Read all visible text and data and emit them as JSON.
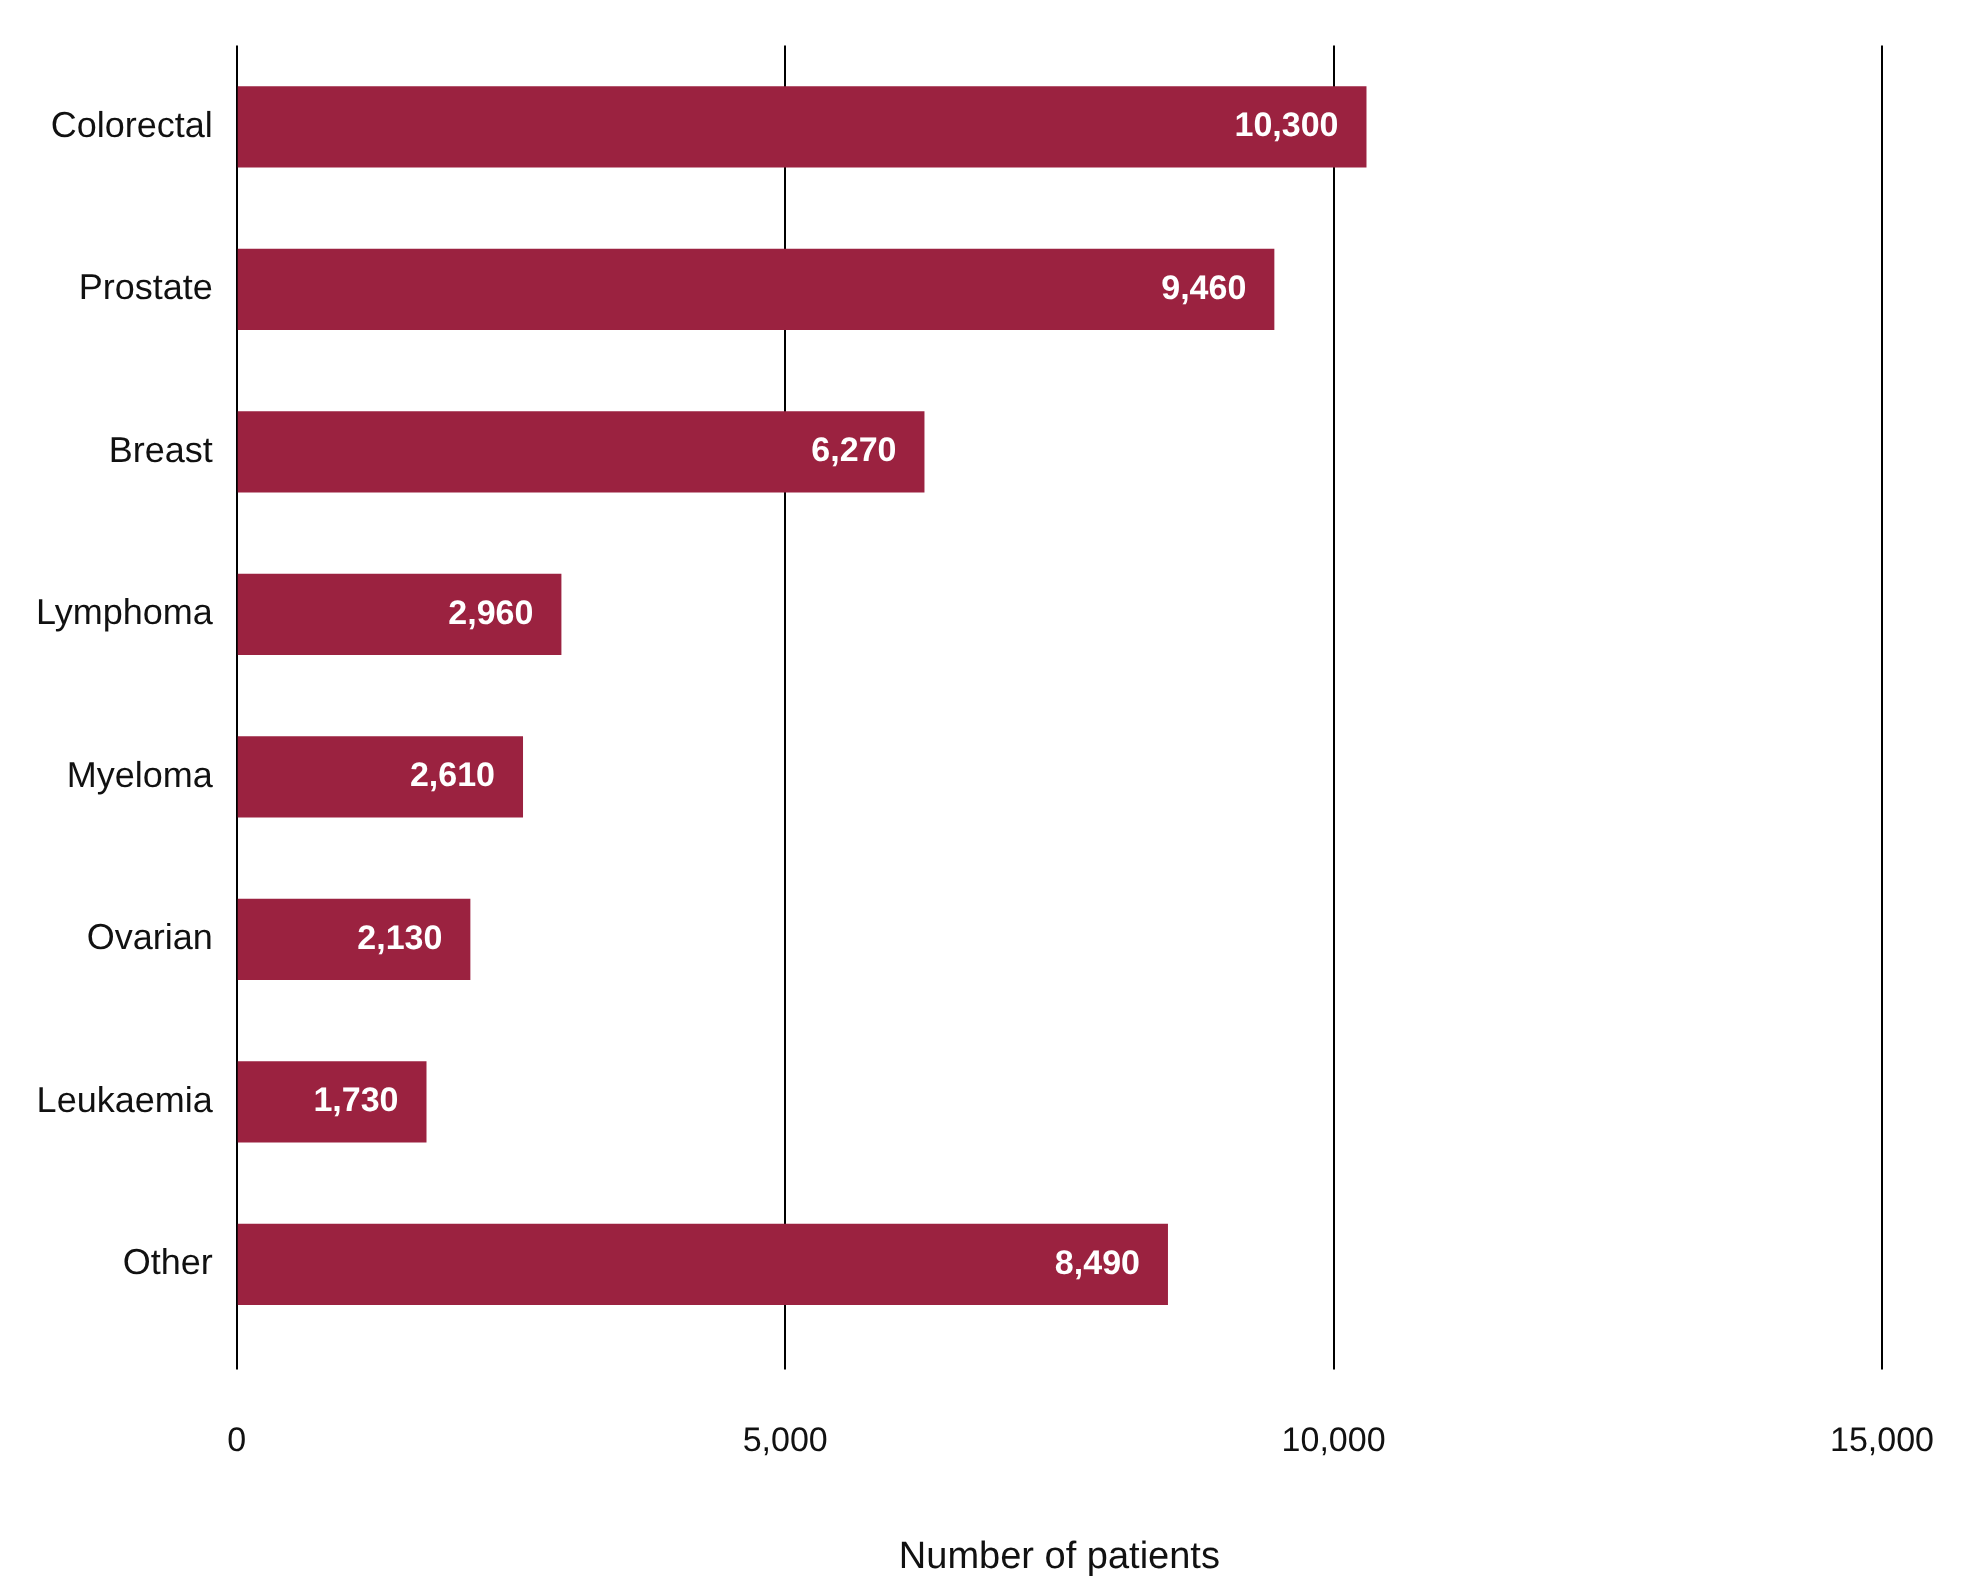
{
  "chart_data": {
    "type": "bar",
    "orientation": "horizontal",
    "xlabel": "Number of patients",
    "categories": [
      "Colorectal",
      "Prostate",
      "Breast",
      "Lymphoma",
      "Myeloma",
      "Ovarian",
      "Leukaemia",
      "Other"
    ],
    "values": [
      10300,
      9460,
      6270,
      2960,
      2610,
      2130,
      1730,
      8490
    ],
    "value_labels": [
      "10,300",
      "9,460",
      "6,270",
      "2,960",
      "2,610",
      "2,130",
      "1,730",
      "8,490"
    ],
    "color": "#9b2240",
    "xlim": [
      0,
      15000
    ],
    "xticks": [
      0,
      {
        "value": 5000,
        "label": "5,000"
      },
      {
        "value": 10000,
        "label": "10,000"
      },
      {
        "value": 15000,
        "label": "15,000"
      }
    ],
    "grid": "x",
    "legend": false
  }
}
